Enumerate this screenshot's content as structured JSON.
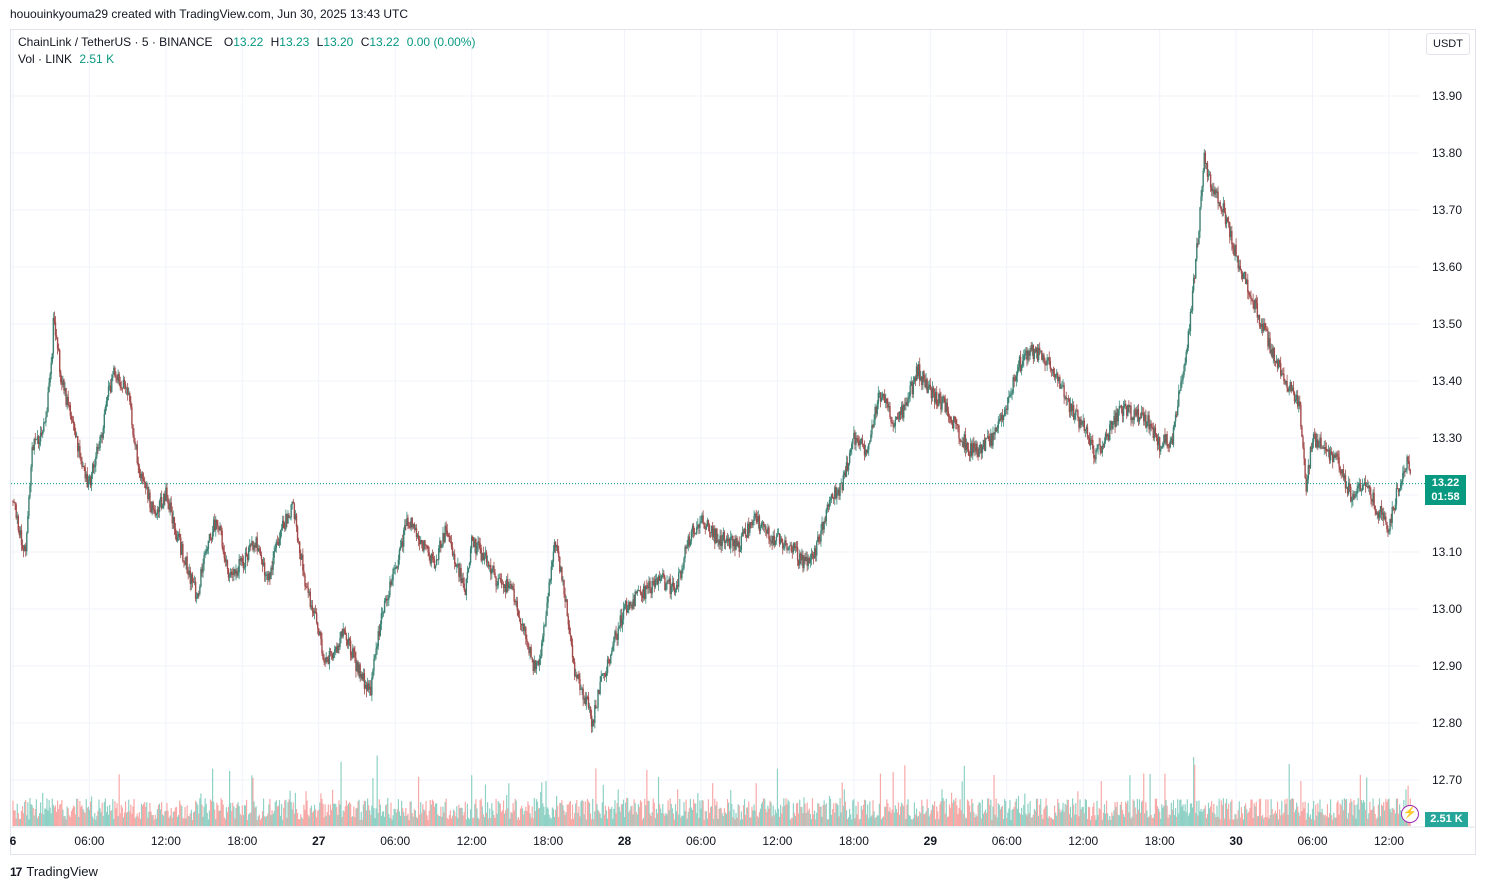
{
  "header": {
    "creator": "hououinkyouma29 created with TradingView.com, Jun 30, 2025 13:43 UTC"
  },
  "legend": {
    "symbol": "ChainLink / TetherUS · 5 · BINANCE",
    "o_label": "O",
    "o_value": "13.22",
    "h_label": "H",
    "h_value": "13.23",
    "l_label": "L",
    "l_value": "13.20",
    "c_label": "C",
    "c_value": "13.22",
    "change": "0.00 (0.00%)",
    "vol_label": "Vol · LINK",
    "vol_value": "2.51 K"
  },
  "currency_button": "USDT",
  "price_tag": {
    "price": "13.22",
    "countdown": "01:58"
  },
  "volume_tag": "2.51 K",
  "footer": {
    "logo_mark": "17",
    "logo_text": "TradingView"
  },
  "colors": {
    "up": "#089981",
    "down": "#f23645",
    "vol_up": "#8fd1c5",
    "vol_down": "#f7a9a7",
    "grid": "#f0f3fa"
  },
  "chart_data": {
    "type": "candlestick",
    "symbol": "LINKUSDT",
    "interval": "5",
    "ylim": [
      12.62,
      13.98
    ],
    "y_ticks": [
      12.7,
      12.8,
      12.9,
      13.0,
      13.1,
      13.2,
      13.3,
      13.4,
      13.5,
      13.6,
      13.7,
      13.8,
      13.9
    ],
    "y_tick_labels": [
      "12.70",
      "12.80",
      "12.90",
      "13.00",
      "13.10",
      "13.20",
      "13.30",
      "13.40",
      "13.50",
      "13.60",
      "13.70",
      "13.80",
      "13.90"
    ],
    "x_tick_labels": [
      "6",
      "06:00",
      "12:00",
      "18:00",
      "27",
      "06:00",
      "12:00",
      "18:00",
      "28",
      "06:00",
      "12:00",
      "18:00",
      "29",
      "06:00",
      "12:00",
      "18:00",
      "30",
      "06:00",
      "12:00"
    ],
    "x_tick_hours": [
      0,
      6,
      12,
      18,
      24,
      30,
      36,
      42,
      48,
      54,
      60,
      66,
      72,
      78,
      84,
      90,
      96,
      102,
      108
    ],
    "x_end_hour": 109.7,
    "last_price": 13.22,
    "price_path": [
      [
        0.0,
        13.19
      ],
      [
        1.0,
        13.09
      ],
      [
        1.5,
        13.28
      ],
      [
        2.5,
        13.32
      ],
      [
        3.0,
        13.42
      ],
      [
        3.2,
        13.52
      ],
      [
        3.8,
        13.4
      ],
      [
        4.5,
        13.34
      ],
      [
        5.5,
        13.24
      ],
      [
        6.0,
        13.22
      ],
      [
        7.0,
        13.31
      ],
      [
        7.5,
        13.38
      ],
      [
        8.0,
        13.42
      ],
      [
        8.5,
        13.4
      ],
      [
        9.0,
        13.38
      ],
      [
        9.5,
        13.3
      ],
      [
        10.0,
        13.24
      ],
      [
        11.0,
        13.17
      ],
      [
        12.0,
        13.2
      ],
      [
        13.0,
        13.12
      ],
      [
        14.0,
        13.05
      ],
      [
        14.5,
        13.02
      ],
      [
        15.0,
        13.1
      ],
      [
        16.0,
        13.16
      ],
      [
        17.0,
        13.06
      ],
      [
        18.0,
        13.08
      ],
      [
        19.0,
        13.12
      ],
      [
        20.0,
        13.05
      ],
      [
        21.0,
        13.14
      ],
      [
        22.0,
        13.18
      ],
      [
        23.0,
        13.04
      ],
      [
        24.0,
        12.96
      ],
      [
        24.5,
        12.9
      ],
      [
        25.0,
        12.92
      ],
      [
        26.0,
        12.96
      ],
      [
        27.0,
        12.9
      ],
      [
        28.0,
        12.85
      ],
      [
        29.0,
        13.0
      ],
      [
        30.0,
        13.07
      ],
      [
        31.0,
        13.16
      ],
      [
        32.0,
        13.12
      ],
      [
        33.0,
        13.08
      ],
      [
        34.0,
        13.14
      ],
      [
        34.5,
        13.1
      ],
      [
        35.5,
        13.03
      ],
      [
        36.0,
        13.12
      ],
      [
        37.0,
        13.09
      ],
      [
        38.0,
        13.05
      ],
      [
        39.0,
        13.04
      ],
      [
        40.0,
        12.97
      ],
      [
        41.0,
        12.89
      ],
      [
        41.5,
        12.93
      ],
      [
        42.0,
        13.02
      ],
      [
        42.5,
        13.12
      ],
      [
        43.5,
        13.0
      ],
      [
        44.0,
        12.9
      ],
      [
        45.0,
        12.84
      ],
      [
        45.5,
        12.8
      ],
      [
        46.0,
        12.86
      ],
      [
        47.0,
        12.93
      ],
      [
        48.0,
        13.0
      ],
      [
        49.0,
        13.02
      ],
      [
        50.0,
        13.04
      ],
      [
        51.0,
        13.05
      ],
      [
        52.0,
        13.03
      ],
      [
        53.0,
        13.12
      ],
      [
        54.0,
        13.16
      ],
      [
        55.0,
        13.13
      ],
      [
        56.0,
        13.12
      ],
      [
        57.0,
        13.11
      ],
      [
        58.0,
        13.16
      ],
      [
        59.0,
        13.14
      ],
      [
        60.0,
        13.12
      ],
      [
        61.0,
        13.11
      ],
      [
        62.0,
        13.08
      ],
      [
        63.0,
        13.1
      ],
      [
        64.0,
        13.19
      ],
      [
        65.0,
        13.21
      ],
      [
        66.0,
        13.3
      ],
      [
        67.0,
        13.28
      ],
      [
        68.0,
        13.38
      ],
      [
        69.0,
        13.33
      ],
      [
        70.0,
        13.35
      ],
      [
        71.0,
        13.42
      ],
      [
        72.0,
        13.38
      ],
      [
        73.0,
        13.36
      ],
      [
        74.0,
        13.32
      ],
      [
        75.0,
        13.28
      ],
      [
        76.0,
        13.28
      ],
      [
        77.0,
        13.3
      ],
      [
        78.0,
        13.36
      ],
      [
        79.0,
        13.43
      ],
      [
        80.0,
        13.45
      ],
      [
        81.0,
        13.44
      ],
      [
        82.0,
        13.4
      ],
      [
        83.0,
        13.35
      ],
      [
        84.0,
        13.32
      ],
      [
        85.0,
        13.27
      ],
      [
        86.0,
        13.31
      ],
      [
        87.0,
        13.35
      ],
      [
        88.0,
        13.34
      ],
      [
        89.0,
        13.33
      ],
      [
        90.0,
        13.29
      ],
      [
        91.0,
        13.3
      ],
      [
        91.5,
        13.38
      ],
      [
        92.0,
        13.42
      ],
      [
        93.0,
        13.65
      ],
      [
        93.5,
        13.8
      ],
      [
        94.0,
        13.74
      ],
      [
        95.0,
        13.7
      ],
      [
        96.0,
        13.62
      ],
      [
        97.0,
        13.56
      ],
      [
        98.0,
        13.5
      ],
      [
        99.0,
        13.44
      ],
      [
        100.0,
        13.4
      ],
      [
        101.0,
        13.35
      ],
      [
        101.5,
        13.21
      ],
      [
        102.0,
        13.3
      ],
      [
        103.0,
        13.28
      ],
      [
        104.0,
        13.26
      ],
      [
        105.0,
        13.2
      ],
      [
        106.0,
        13.22
      ],
      [
        107.0,
        13.18
      ],
      [
        108.0,
        13.14
      ],
      [
        108.8,
        13.22
      ],
      [
        109.5,
        13.26
      ],
      [
        109.7,
        13.22
      ]
    ],
    "grid": true
  }
}
